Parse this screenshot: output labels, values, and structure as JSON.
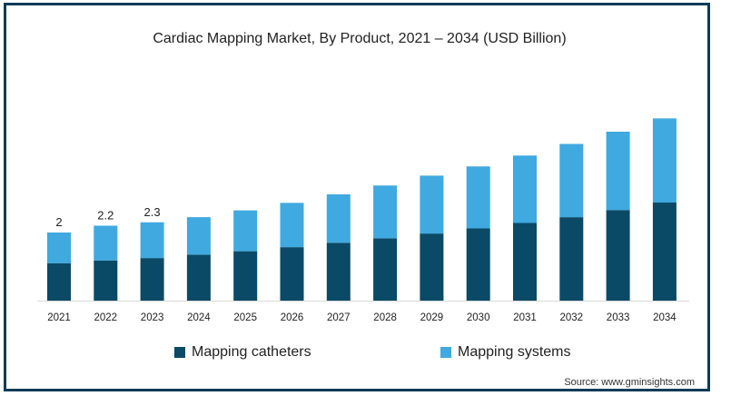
{
  "chart_data": {
    "type": "bar",
    "stacked": true,
    "title": "Cardiac Mapping Market, By Product, 2021 – 2034 (USD Billion)",
    "categories": [
      "2021",
      "2022",
      "2023",
      "2024",
      "2025",
      "2026",
      "2027",
      "2028",
      "2029",
      "2030",
      "2031",
      "2032",
      "2033",
      "2034"
    ],
    "series": [
      {
        "name": "Mapping catheters",
        "color": "#0a4a66",
        "values": [
          1.1,
          1.18,
          1.25,
          1.35,
          1.45,
          1.57,
          1.7,
          1.83,
          1.97,
          2.12,
          2.28,
          2.45,
          2.66,
          2.88
        ]
      },
      {
        "name": "Mapping systems",
        "color": "#3fa9e0",
        "values": [
          0.9,
          1.02,
          1.05,
          1.1,
          1.2,
          1.3,
          1.42,
          1.55,
          1.7,
          1.82,
          1.98,
          2.15,
          2.3,
          2.47
        ]
      }
    ],
    "data_labels": [
      "2",
      "2.2",
      "2.3",
      "",
      "",
      "",
      "",
      "",
      "",
      "",
      "",
      "",
      "",
      ""
    ],
    "ylim": [
      0,
      5.5
    ],
    "grid": false,
    "legend_position": "bottom"
  },
  "source": "Source: www.gminsights.com"
}
